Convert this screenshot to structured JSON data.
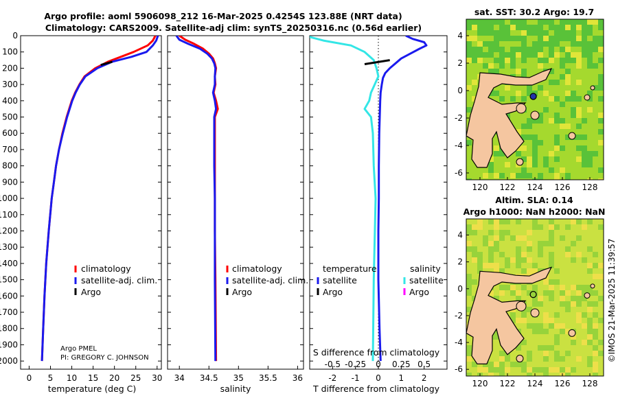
{
  "title_line1": "Argo profile: aoml 5906098_212 16-Mar-2025 0.4254S 123.88E (NRT data)",
  "title_line2": "Climatology: CARS2009. Satellite-adj clim: synTS_20250316.nc (0.56d earlier)",
  "credit_pmel": "Argo PMEL",
  "credit_pi": "PI: GREGORY C. JOHNSON",
  "stamp": "©IMOS 21-Mar-2025 11:39:57",
  "colors": {
    "climatology": "#ff0000",
    "satellite": "#1a1aee",
    "argo": "#000000",
    "sat_salinity": "#33e6e6",
    "argo_salinity": "#ff00ff",
    "land": "#f5c6a0"
  },
  "chart_data": [
    {
      "type": "line",
      "name": "temperature-profile",
      "xlabel": "temperature (deg C)",
      "ylabel": "",
      "xlim": [
        -2,
        31
      ],
      "ylim": [
        2050,
        0
      ],
      "xticks": [
        0,
        5,
        10,
        15,
        20,
        25,
        30
      ],
      "yticks": [
        0,
        100,
        200,
        300,
        400,
        500,
        600,
        700,
        800,
        900,
        1000,
        1100,
        1200,
        1300,
        1400,
        1500,
        1600,
        1700,
        1800,
        1900,
        2000
      ],
      "legend": [
        "climatology",
        "satellite-adj. clim.",
        "Argo"
      ],
      "series": [
        {
          "name": "climatology",
          "depth": [
            0,
            30,
            60,
            100,
            130,
            160,
            200,
            250,
            300,
            350,
            400,
            500,
            600,
            700,
            800,
            900,
            1000,
            1200,
            1400,
            1600,
            1800,
            2000
          ],
          "values": [
            29.6,
            29.0,
            27.8,
            24.5,
            21.5,
            18.5,
            15.5,
            13.0,
            11.8,
            10.8,
            10.0,
            8.8,
            7.8,
            7.0,
            6.3,
            5.8,
            5.3,
            4.6,
            4.0,
            3.6,
            3.3,
            3.0
          ]
        },
        {
          "name": "satellite-adj. clim.",
          "depth": [
            0,
            30,
            60,
            100,
            130,
            160,
            200,
            250,
            300,
            350,
            400,
            500,
            600,
            700,
            800,
            900,
            1000,
            1200,
            1400,
            1600,
            1800,
            2000
          ],
          "values": [
            30.2,
            29.8,
            29.0,
            27.5,
            24.0,
            19.5,
            16.0,
            13.2,
            11.9,
            10.9,
            10.1,
            8.9,
            7.9,
            7.0,
            6.3,
            5.8,
            5.3,
            4.6,
            4.0,
            3.6,
            3.3,
            3.0
          ]
        },
        {
          "name": "Argo",
          "depth": [
            160,
            180
          ],
          "values": [
            19.5,
            16.8
          ]
        }
      ]
    },
    {
      "type": "line",
      "name": "salinity-profile",
      "xlabel": "salinity",
      "xlim": [
        33.8,
        36.1
      ],
      "ylim": [
        2050,
        0
      ],
      "xticks": [
        34,
        34.5,
        35,
        35.5,
        36
      ],
      "legend": [
        "climatology",
        "satellite-adj. clim.",
        "Argo"
      ],
      "series": [
        {
          "name": "climatology",
          "depth": [
            0,
            25,
            50,
            80,
            110,
            140,
            170,
            200,
            250,
            300,
            350,
            400,
            450,
            500,
            600,
            800,
            1000,
            1200,
            1500,
            2000
          ],
          "values": [
            34.0,
            34.1,
            34.25,
            34.4,
            34.5,
            34.57,
            34.6,
            34.62,
            34.6,
            34.61,
            34.58,
            34.62,
            34.65,
            34.6,
            34.6,
            34.6,
            34.6,
            34.6,
            34.61,
            34.62
          ]
        },
        {
          "name": "satellite-adj. clim.",
          "depth": [
            0,
            25,
            50,
            80,
            110,
            140,
            170,
            200,
            250,
            300,
            350,
            400,
            450,
            500,
            600,
            800,
            1000,
            1200,
            1500,
            2000
          ],
          "values": [
            33.95,
            34.0,
            34.15,
            34.35,
            34.47,
            34.55,
            34.59,
            34.61,
            34.6,
            34.6,
            34.57,
            34.6,
            34.62,
            34.59,
            34.59,
            34.59,
            34.6,
            34.6,
            34.6,
            34.61
          ]
        }
      ]
    },
    {
      "type": "line",
      "name": "difference-profile",
      "xlabel": "T difference from climatology",
      "xlabel2": "S difference from climatology",
      "xlim": [
        -3,
        3
      ],
      "ylim": [
        2050,
        0
      ],
      "xticks": [
        -2,
        -1,
        0,
        1,
        2
      ],
      "xticks2": [
        "-0.5",
        "-0.25",
        "0",
        "0.25",
        "0.5"
      ],
      "legend_header_t": "temperature",
      "legend_header_s": "salinity",
      "legend_t": [
        "satellite",
        "Argo"
      ],
      "legend_s": [
        "satellite",
        "Argo"
      ],
      "series": [
        {
          "name": "T satellite",
          "depth": [
            0,
            20,
            40,
            60,
            80,
            110,
            140,
            170,
            200,
            230,
            260,
            300,
            350,
            400,
            500,
            600,
            800,
            1000,
            1200,
            1500,
            1800,
            2000
          ],
          "values": [
            1.2,
            1.5,
            2.0,
            2.1,
            1.8,
            1.4,
            1.0,
            0.75,
            0.5,
            0.3,
            0.2,
            0.15,
            0.1,
            0.08,
            0.06,
            0.04,
            0.02,
            0.02,
            0.0,
            0.0,
            0.05,
            0.1
          ]
        },
        {
          "name": "S satellite",
          "depth": [
            0,
            30,
            60,
            100,
            150,
            200,
            250,
            300,
            350,
            400,
            450,
            500,
            600,
            800,
            1000,
            1500,
            2000
          ],
          "values": [
            -0.8,
            -0.6,
            -0.3,
            -0.15,
            -0.05,
            -0.02,
            0.0,
            -0.04,
            -0.08,
            -0.1,
            -0.15,
            -0.08,
            -0.06,
            -0.05,
            -0.03,
            -0.05,
            -0.06
          ]
        },
        {
          "name": "T Argo",
          "depth": [
            175,
            150
          ],
          "values": [
            -0.6,
            0.5
          ]
        }
      ]
    },
    {
      "type": "heatmap",
      "name": "sst-map",
      "title": "sat. SST: 30.2 Argo: 19.7",
      "xticks": [
        120,
        122,
        124,
        126,
        128
      ],
      "yticks": [
        4,
        2,
        0,
        -2,
        -4,
        -6
      ],
      "xlim": [
        119,
        129
      ],
      "ylim": [
        -6.5,
        5.2
      ],
      "marker": {
        "lon": 123.88,
        "lat": -0.4254
      }
    },
    {
      "type": "heatmap",
      "name": "sla-map",
      "title1": "Altim. SLA: 0.14",
      "title2": "Argo h1000: NaN h2000: NaN",
      "xticks": [
        120,
        122,
        124,
        126,
        128
      ],
      "yticks": [
        4,
        2,
        0,
        -2,
        -4,
        -6
      ],
      "xlim": [
        119,
        129
      ],
      "ylim": [
        -6.5,
        5.2
      ],
      "marker": {
        "lon": 123.88,
        "lat": -0.4254
      }
    }
  ]
}
